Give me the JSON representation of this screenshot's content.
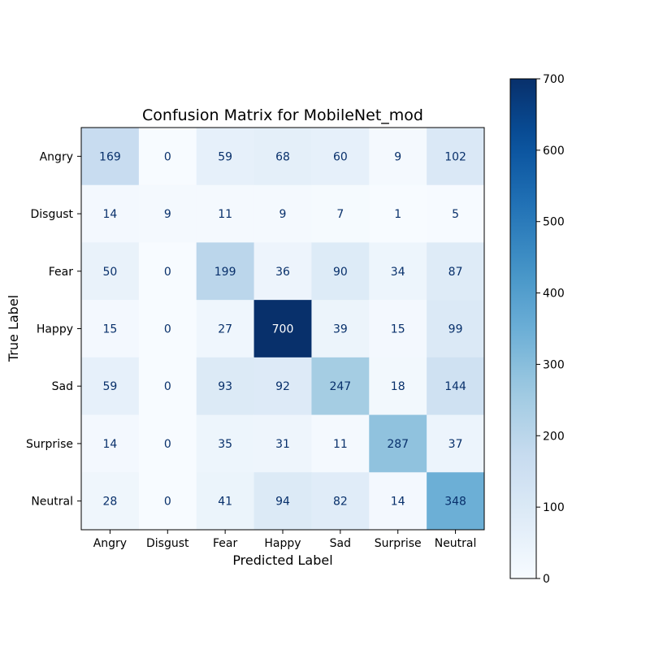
{
  "chart_data": {
    "type": "heatmap",
    "title": "Confusion Matrix for MobileNet_mod",
    "xlabel": "Predicted Label",
    "ylabel": "True Label",
    "x_categories": [
      "Angry",
      "Disgust",
      "Fear",
      "Happy",
      "Sad",
      "Surprise",
      "Neutral"
    ],
    "y_categories": [
      "Angry",
      "Disgust",
      "Fear",
      "Happy",
      "Sad",
      "Surprise",
      "Neutral"
    ],
    "matrix": [
      [
        169,
        0,
        59,
        68,
        60,
        9,
        102
      ],
      [
        14,
        9,
        11,
        9,
        7,
        1,
        5
      ],
      [
        50,
        0,
        199,
        36,
        90,
        34,
        87
      ],
      [
        15,
        0,
        27,
        700,
        39,
        15,
        99
      ],
      [
        59,
        0,
        93,
        92,
        247,
        18,
        144
      ],
      [
        14,
        0,
        35,
        31,
        11,
        287,
        37
      ],
      [
        28,
        0,
        41,
        94,
        82,
        14,
        348
      ]
    ],
    "colormap": "Blues",
    "colorbar": {
      "range": [
        0,
        700
      ],
      "ticks": [
        0,
        100,
        200,
        300,
        400,
        500,
        600,
        700
      ]
    }
  }
}
